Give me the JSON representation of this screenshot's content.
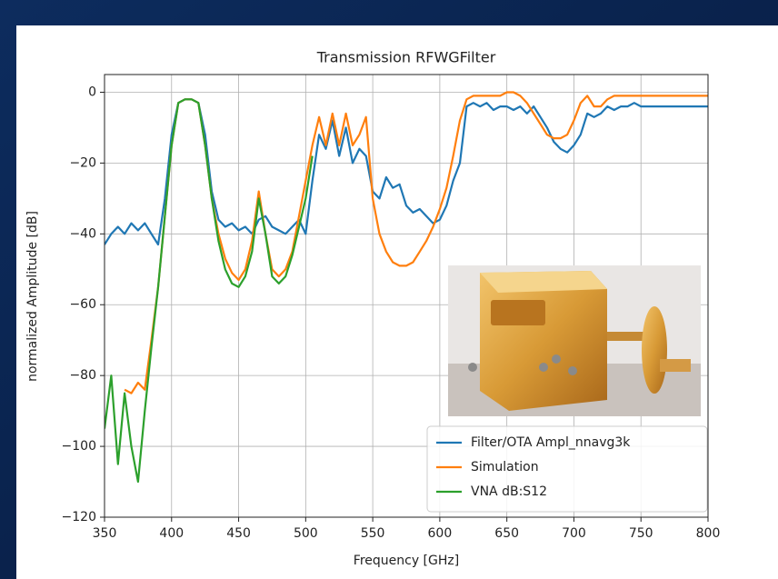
{
  "chart_data": {
    "type": "line",
    "title": "Transmission RFWGFilter",
    "x_label": "Frequency [GHz]",
    "y_label": "normalized Amplitude [dB]",
    "x": [
      350,
      355,
      360,
      365,
      370,
      375,
      380,
      385,
      390,
      395,
      400,
      405,
      410,
      415,
      420,
      425,
      430,
      435,
      440,
      445,
      450,
      455,
      460,
      465,
      470,
      475,
      480,
      485,
      490,
      495,
      500,
      505,
      510,
      515,
      520,
      525,
      530,
      535,
      540,
      545,
      550,
      555,
      560,
      565,
      570,
      575,
      580,
      585,
      590,
      595,
      600,
      605,
      610,
      615,
      620,
      625,
      630,
      635,
      640,
      645,
      650,
      655,
      660,
      665,
      670,
      675,
      680,
      685,
      690,
      695,
      700,
      705,
      710,
      715,
      720,
      725,
      730,
      735,
      740,
      745,
      750,
      755,
      760,
      765,
      770,
      775,
      780,
      785,
      790,
      795,
      800
    ],
    "series": [
      {
        "name": "Filter/OTA Ampl_nnavg3k",
        "color": "#1f77b4",
        "values": [
          -43,
          -40,
          -38,
          -40,
          -37,
          -39,
          -37,
          -40,
          -43,
          -30,
          -12,
          -3,
          -2,
          -2,
          -3,
          -12,
          -28,
          -36,
          -38,
          -37,
          -39,
          -38,
          -40,
          -36,
          -35,
          -38,
          -39,
          -40,
          -38,
          -36,
          -40,
          -25,
          -12,
          -16,
          -8,
          -18,
          -10,
          -20,
          -16,
          -18,
          -28,
          -30,
          -24,
          -27,
          -26,
          -32,
          -34,
          -33,
          -35,
          -37,
          -36,
          -32,
          -25,
          -20,
          -4,
          -3,
          -4,
          -3,
          -5,
          -4,
          -4,
          -5,
          -4,
          -6,
          -4,
          -7,
          -10,
          -14,
          -16,
          -17,
          -15,
          -12,
          -6,
          -7,
          -6,
          -4,
          -5,
          -4,
          -4,
          -3,
          -4,
          -4,
          -4,
          -4,
          -4,
          -4,
          -4,
          -4,
          -4,
          -4,
          -4
        ]
      },
      {
        "name": "Simulation",
        "color": "#ff7f0e",
        "values": [
          null,
          null,
          null,
          -84,
          -85,
          -82,
          -84,
          -70,
          -55,
          -35,
          -15,
          -3,
          -2,
          -2,
          -3,
          -15,
          -30,
          -40,
          -47,
          -51,
          -53,
          -50,
          -42,
          -28,
          -40,
          -50,
          -52,
          -50,
          -45,
          -35,
          -25,
          -15,
          -7,
          -15,
          -6,
          -15,
          -6,
          -15,
          -12,
          -7,
          -30,
          -40,
          -45,
          -48,
          -49,
          -49,
          -48,
          -45,
          -42,
          -38,
          -33,
          -27,
          -18,
          -8,
          -2,
          -1,
          -1,
          -1,
          -1,
          -1,
          0,
          0,
          -1,
          -3,
          -6,
          -9,
          -12,
          -13,
          -13,
          -12,
          -8,
          -3,
          -1,
          -4,
          -4,
          -2,
          -1,
          -1,
          -1,
          -1,
          -1,
          -1,
          -1,
          -1,
          -1,
          -1,
          -1,
          -1,
          -1,
          -1,
          -1
        ]
      },
      {
        "name": "VNA dB:S12",
        "color": "#2ca02c",
        "values": [
          -95,
          -80,
          -105,
          -85,
          -100,
          -110,
          -90,
          -72,
          -55,
          -35,
          -15,
          -3,
          -2,
          -2,
          -3,
          -15,
          -30,
          -42,
          -50,
          -54,
          -55,
          -52,
          -45,
          -30,
          -40,
          -52,
          -54,
          -52,
          -46,
          -38,
          -30,
          -18,
          null,
          null,
          null,
          null,
          null,
          null,
          null,
          null,
          null,
          null,
          null,
          null,
          null,
          null,
          null,
          null,
          null,
          null,
          null,
          null,
          null,
          null,
          null,
          null,
          null,
          null,
          null,
          null,
          null,
          null,
          null,
          null,
          null,
          null,
          null,
          null,
          null,
          null,
          null,
          null,
          null,
          null,
          null,
          null,
          null,
          null,
          null,
          null,
          null,
          null,
          null,
          null,
          null,
          null,
          null,
          null,
          null,
          null,
          null
        ]
      }
    ],
    "xlim": [
      350,
      800
    ],
    "xticks": [
      350,
      400,
      450,
      500,
      550,
      600,
      650,
      700,
      750,
      800
    ],
    "ylim": [
      -120,
      5
    ],
    "yticks": [
      {
        "value": -120,
        "label": "−120"
      },
      {
        "value": -100,
        "label": "−100"
      },
      {
        "value": -80,
        "label": "−80"
      },
      {
        "value": -60,
        "label": "−60"
      },
      {
        "value": -40,
        "label": "−40"
      },
      {
        "value": -20,
        "label": "−20"
      },
      0
    ],
    "grid": true,
    "legend": "lower right"
  }
}
